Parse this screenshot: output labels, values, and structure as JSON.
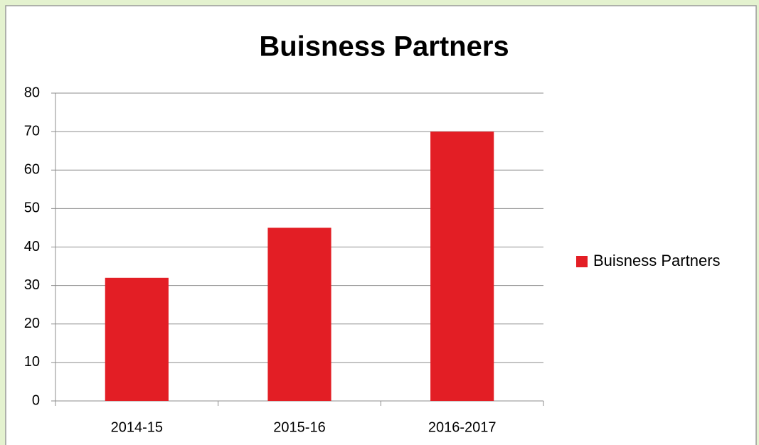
{
  "chart_data": {
    "type": "bar",
    "title": "Buisness Partners",
    "categories": [
      "2014-15",
      "2015-16",
      "2016-2017"
    ],
    "series": [
      {
        "name": "Buisness Partners",
        "color": "#e31e25",
        "values": [
          32,
          45,
          70
        ]
      }
    ],
    "ylim": [
      0,
      80
    ],
    "yticks": [
      0,
      10,
      20,
      30,
      40,
      50,
      60,
      70,
      80
    ],
    "grid": true,
    "legend": "right"
  }
}
